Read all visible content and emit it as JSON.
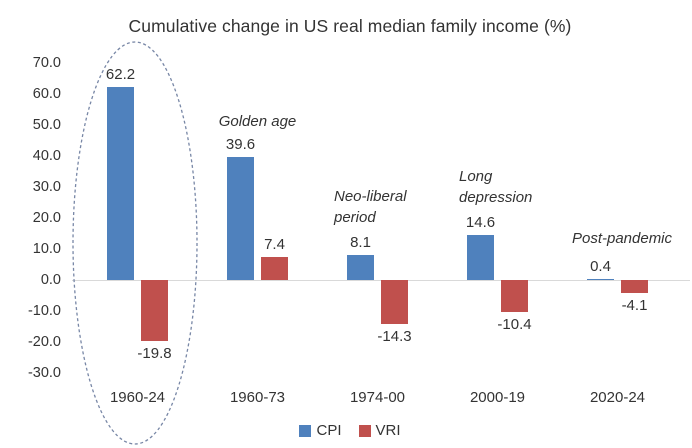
{
  "chart_data": {
    "type": "bar",
    "title": "Cumulative change in US real median family income (%)",
    "xlabel": "",
    "ylabel": "",
    "categories": [
      "1960-24",
      "1960-73",
      "1974-00",
      "2000-19",
      "2020-24"
    ],
    "series": [
      {
        "name": "CPI",
        "color": "#4F81BD",
        "values": [
          62.2,
          39.6,
          8.1,
          14.6,
          0.4
        ]
      },
      {
        "name": "VRI",
        "color": "#C0504D",
        "values": [
          -19.8,
          7.4,
          -14.3,
          -10.4,
          -4.1
        ]
      }
    ],
    "data_labels": [
      [
        "62.2",
        "39.6",
        "8.1",
        "14.6",
        "0.4"
      ],
      [
        "-19.8",
        "7.4",
        "-14.3",
        "-10.4",
        "-4.1"
      ]
    ],
    "annotations": [
      {
        "text": "Golden age",
        "category_index": 1
      },
      {
        "text": "Neo-liberal period",
        "category_index": 2
      },
      {
        "text": "Long depression",
        "category_index": 3
      },
      {
        "text": "Post-pandemic",
        "category_index": 4
      }
    ],
    "y_axis": {
      "tick_labels": [
        "70.0",
        "60.0",
        "50.0",
        "40.0",
        "30.0",
        "20.0",
        "10.0",
        "0.0",
        "-10.0",
        "-20.0",
        "-30.0"
      ]
    },
    "ylim": [
      -30,
      70
    ],
    "y_tick_step": 10,
    "grid": false,
    "legend_position": "bottom",
    "highlight": {
      "shape": "dashed-ellipse",
      "around_category": "1960-24",
      "color": "#7887A6"
    },
    "baseline_color": "#D9D9D9"
  }
}
